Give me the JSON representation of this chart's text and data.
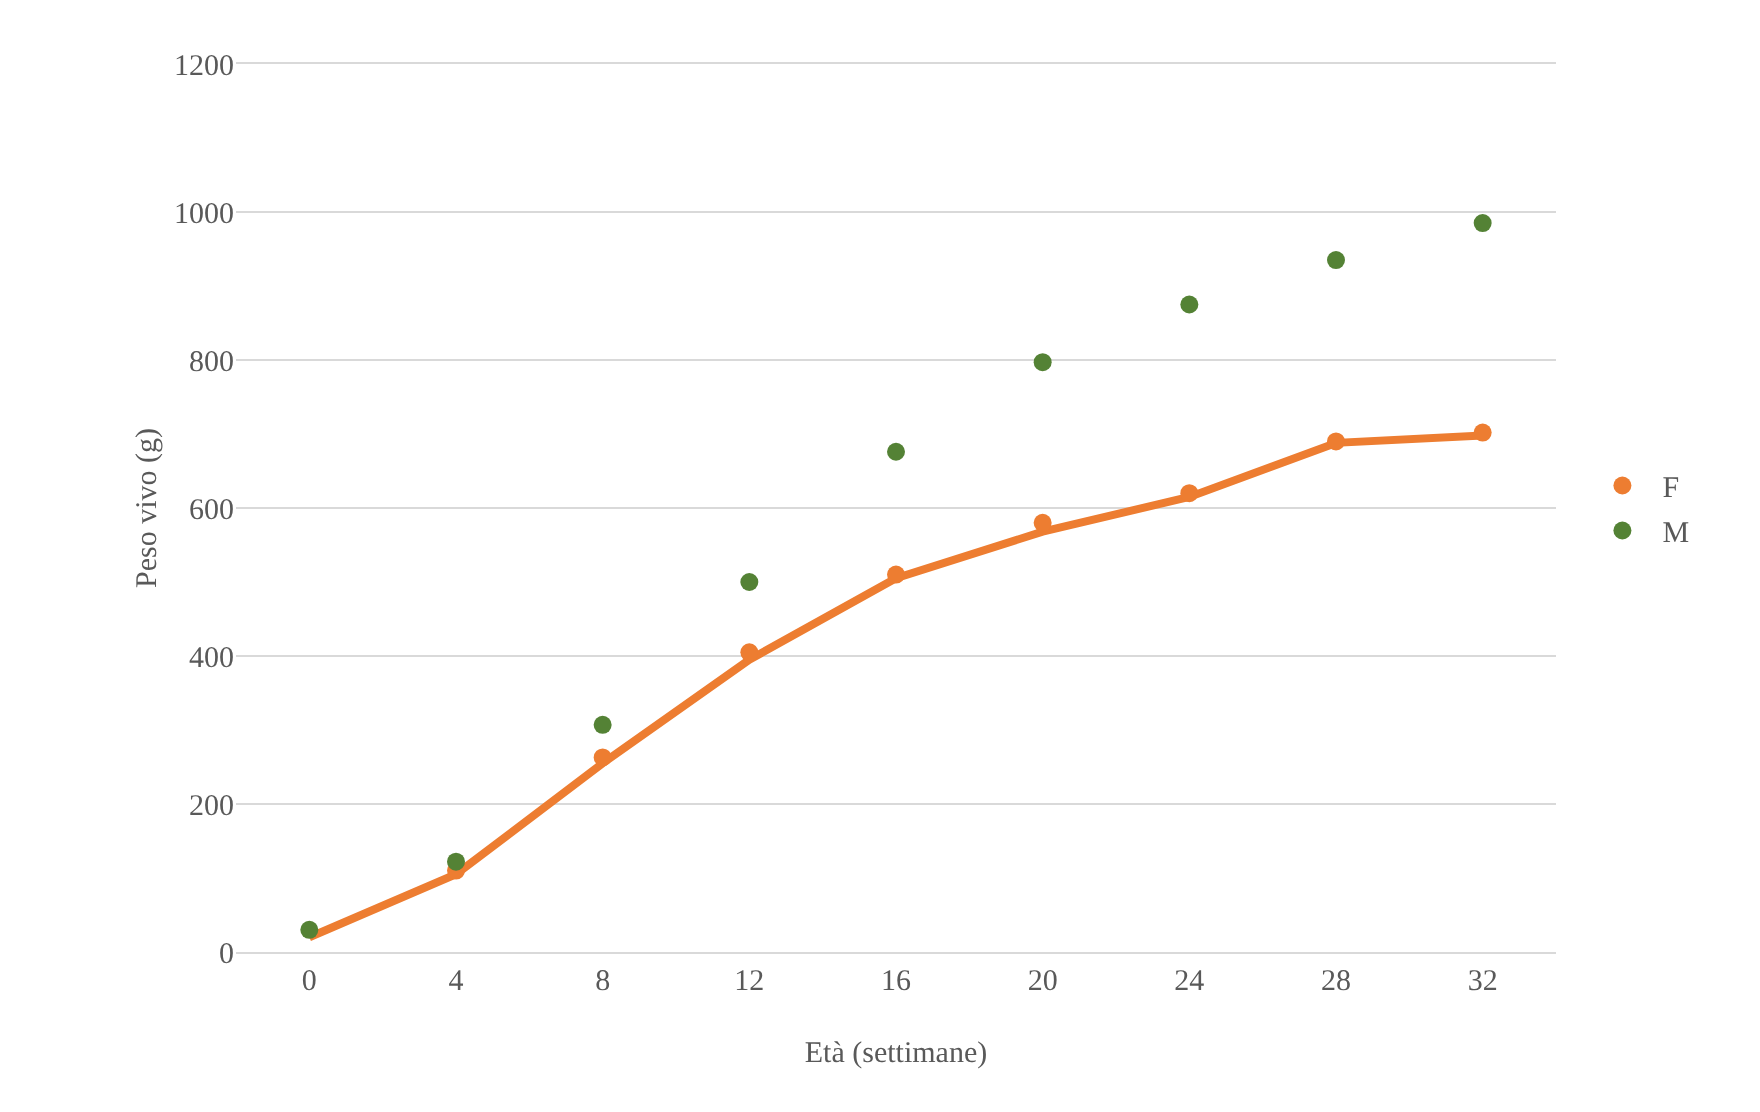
{
  "chart_data": {
    "type": "scatter",
    "xlabel": "Età (settimane)",
    "ylabel": "Peso vivo (g)",
    "x": [
      0,
      4,
      8,
      12,
      16,
      20,
      24,
      28,
      32
    ],
    "series": [
      {
        "type": "line",
        "color": "#ed7d31",
        "values": [
          20,
          105,
          255,
          395,
          505,
          568,
          615,
          688,
          698
        ],
        "marker": "none",
        "line_style": "solid"
      },
      {
        "name": "F",
        "color": "#ed7d31",
        "values": [
          null,
          110,
          263,
          405,
          510,
          580,
          620,
          690,
          702
        ]
      },
      {
        "name": "M",
        "color": "#548235",
        "values": [
          30,
          122,
          307,
          500,
          676,
          797,
          875,
          935,
          985
        ]
      }
    ],
    "xlim": [
      -2,
      34
    ],
    "xticks": [
      0,
      4,
      8,
      12,
      16,
      20,
      24,
      28,
      32
    ],
    "ylim": [
      0,
      1200
    ],
    "yticks": [
      0,
      200,
      400,
      600,
      800,
      1000,
      1200
    ],
    "grid": "y",
    "legend": "right",
    "marker": "circle"
  }
}
